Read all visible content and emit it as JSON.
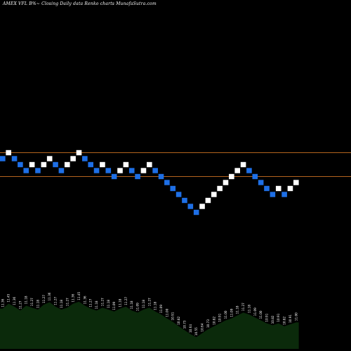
{
  "chart_data": {
    "type": "renko",
    "title": "AMEX  VFL  B%~  Closing Daily data  Renko  charts MunafaSutra.com",
    "colors": {
      "background": "#000000",
      "up_brick": "#ffffff",
      "down_brick": "#1e6fe6",
      "levels": "#b4641e",
      "volume_area": "#0b2a0b",
      "volume_text": "#ffffff"
    },
    "reference_levels": [
      11.45,
      11.09
    ],
    "brick_size": 0.09,
    "bricks": [
      {
        "dir": "down",
        "close": 11.36
      },
      {
        "dir": "up",
        "close": 11.45
      },
      {
        "dir": "down",
        "close": 11.36
      },
      {
        "dir": "down",
        "close": 11.27
      },
      {
        "dir": "down",
        "close": 11.18
      },
      {
        "dir": "up",
        "close": 11.27
      },
      {
        "dir": "down",
        "close": 11.18
      },
      {
        "dir": "up",
        "close": 11.27
      },
      {
        "dir": "up",
        "close": 11.36
      },
      {
        "dir": "down",
        "close": 11.27
      },
      {
        "dir": "down",
        "close": 11.18
      },
      {
        "dir": "up",
        "close": 11.27
      },
      {
        "dir": "up",
        "close": 11.36
      },
      {
        "dir": "up",
        "close": 11.45
      },
      {
        "dir": "down",
        "close": 11.36
      },
      {
        "dir": "down",
        "close": 11.27
      },
      {
        "dir": "down",
        "close": 11.18
      },
      {
        "dir": "up",
        "close": 11.27
      },
      {
        "dir": "down",
        "close": 11.18
      },
      {
        "dir": "down",
        "close": 11.09
      },
      {
        "dir": "up",
        "close": 11.18
      },
      {
        "dir": "up",
        "close": 11.27
      },
      {
        "dir": "down",
        "close": 11.18
      },
      {
        "dir": "down",
        "close": 11.09
      },
      {
        "dir": "up",
        "close": 11.18
      },
      {
        "dir": "up",
        "close": 11.27
      },
      {
        "dir": "down",
        "close": 11.18
      },
      {
        "dir": "down",
        "close": 11.09
      },
      {
        "dir": "down",
        "close": 11.0
      },
      {
        "dir": "down",
        "close": 10.91
      },
      {
        "dir": "down",
        "close": 10.82
      },
      {
        "dir": "down",
        "close": 10.73
      },
      {
        "dir": "down",
        "close": 10.64
      },
      {
        "dir": "down",
        "close": 10.55
      },
      {
        "dir": "up",
        "close": 10.64
      },
      {
        "dir": "up",
        "close": 10.73
      },
      {
        "dir": "up",
        "close": 10.82
      },
      {
        "dir": "up",
        "close": 10.91
      },
      {
        "dir": "up",
        "close": 11.0
      },
      {
        "dir": "up",
        "close": 11.09
      },
      {
        "dir": "up",
        "close": 11.18
      },
      {
        "dir": "up",
        "close": 11.27
      },
      {
        "dir": "down",
        "close": 11.18
      },
      {
        "dir": "down",
        "close": 11.09
      },
      {
        "dir": "down",
        "close": 11.0
      },
      {
        "dir": "down",
        "close": 10.91
      },
      {
        "dir": "down",
        "close": 10.82
      },
      {
        "dir": "up",
        "close": 10.91
      },
      {
        "dir": "down",
        "close": 10.82
      },
      {
        "dir": "up",
        "close": 10.91
      },
      {
        "dir": "up",
        "close": 11.0
      }
    ],
    "volume_labels": [
      "11.36",
      "11.45",
      "11.36",
      "11.27",
      "11.18",
      "11.27",
      "11.18",
      "11.27",
      "11.36",
      "11.27",
      "11.18",
      "11.27",
      "11.36",
      "11.45",
      "11.36",
      "11.27",
      "11.18",
      "11.27",
      "11.18",
      "11.09",
      "11.18",
      "11.27",
      "11.18",
      "11.09",
      "11.18",
      "11.27",
      "11.18",
      "11.09",
      "11.00",
      "10.91",
      "10.82",
      "10.73",
      "10.64",
      "10.55",
      "10.64",
      "10.73",
      "10.82",
      "10.91",
      "11.00",
      "11.09",
      "11.18",
      "11.27",
      "11.18",
      "11.09",
      "11.00",
      "10.91",
      "10.82",
      "10.91",
      "10.82",
      "10.91",
      "11.00"
    ],
    "volume_profile": [
      0.82,
      0.92,
      0.86,
      0.78,
      0.88,
      0.84,
      0.8,
      0.9,
      0.95,
      0.86,
      0.8,
      0.84,
      0.92,
      0.96,
      0.88,
      0.82,
      0.78,
      0.84,
      0.8,
      0.76,
      0.82,
      0.86,
      0.78,
      0.74,
      0.8,
      0.84,
      0.76,
      0.7,
      0.62,
      0.55,
      0.46,
      0.38,
      0.3,
      0.24,
      0.32,
      0.4,
      0.46,
      0.52,
      0.58,
      0.62,
      0.68,
      0.74,
      0.7,
      0.64,
      0.58,
      0.52,
      0.48,
      0.52,
      0.46,
      0.5,
      0.54
    ]
  }
}
